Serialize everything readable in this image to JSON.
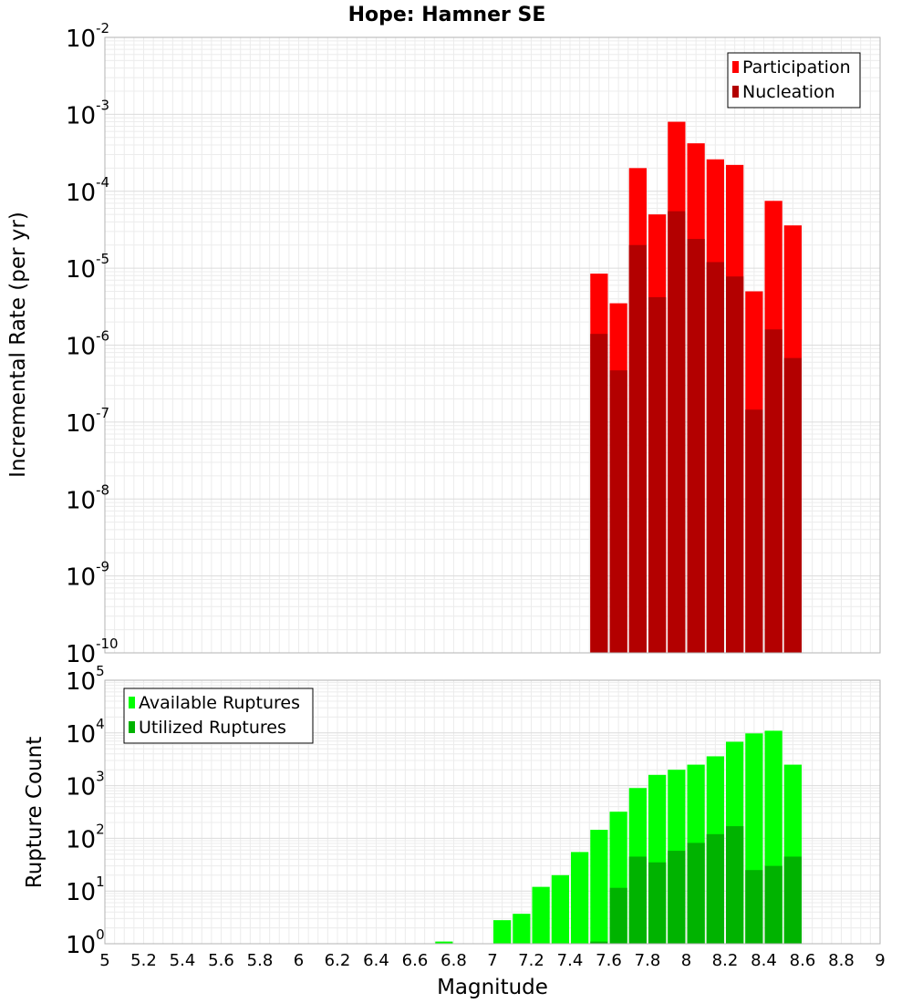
{
  "chart_data": [
    {
      "type": "bar",
      "title": "Hope: Hamner SE",
      "xlabel": "Magnitude",
      "ylabel": "Incremental Rate (per yr)",
      "yscale": "log",
      "xlim": [
        5,
        9
      ],
      "ylim": [
        1e-10,
        0.01
      ],
      "bar_width": 0.1,
      "grid": true,
      "legend_position": "top-right",
      "x": [
        7.55,
        7.65,
        7.75,
        7.85,
        7.95,
        8.05,
        8.15,
        8.25,
        8.35,
        8.45,
        8.55
      ],
      "series": [
        {
          "name": "Participation",
          "color": "#ff0000",
          "values": [
            8.5e-06,
            3.5e-06,
            0.0002,
            5e-05,
            0.0008,
            0.00042,
            0.00026,
            0.00022,
            5e-06,
            7.5e-05,
            3.6e-05
          ]
        },
        {
          "name": "Nucleation",
          "color": "#b30000",
          "values": [
            1.4e-06,
            4.7e-07,
            2e-05,
            4.2e-06,
            5.5e-05,
            2.4e-05,
            1.2e-05,
            7.8e-06,
            1.45e-07,
            1.6e-06,
            6.8e-07
          ]
        }
      ]
    },
    {
      "type": "bar",
      "xlabel": "Magnitude",
      "ylabel": "Rupture Count",
      "yscale": "log",
      "xlim": [
        5,
        9
      ],
      "ylim": [
        1,
        100000
      ],
      "bar_width": 0.1,
      "grid": true,
      "legend_position": "top-left",
      "x": [
        6.75,
        7.05,
        7.15,
        7.25,
        7.35,
        7.45,
        7.55,
        7.65,
        7.75,
        7.85,
        7.95,
        8.05,
        8.15,
        8.25,
        8.35,
        8.45,
        8.55
      ],
      "series": [
        {
          "name": "Available Ruptures",
          "color": "#00ff00",
          "values": [
            1.1,
            2.8,
            3.7,
            12,
            20,
            55,
            145,
            320,
            900,
            1600,
            2000,
            2500,
            3600,
            6800,
            9800,
            11000,
            2500
          ]
        },
        {
          "name": "Utilized Ruptures",
          "color": "#00b300",
          "values": [
            null,
            null,
            null,
            null,
            null,
            null,
            1.1,
            11.5,
            45,
            35,
            58,
            82,
            120,
            170,
            25,
            30,
            45
          ]
        }
      ]
    }
  ],
  "axes": {
    "x_ticks": [
      "5",
      "5.2",
      "5.4",
      "5.6",
      "5.8",
      "6",
      "6.2",
      "6.4",
      "6.6",
      "6.8",
      "7",
      "7.2",
      "7.4",
      "7.6",
      "7.8",
      "8",
      "8.2",
      "8.4",
      "8.6",
      "8.8",
      "9"
    ],
    "top_y_ticks": [
      {
        "base": "10",
        "exp": "-10"
      },
      {
        "base": "10",
        "exp": "-9"
      },
      {
        "base": "10",
        "exp": "-8"
      },
      {
        "base": "10",
        "exp": "-7"
      },
      {
        "base": "10",
        "exp": "-6"
      },
      {
        "base": "10",
        "exp": "-5"
      },
      {
        "base": "10",
        "exp": "-4"
      },
      {
        "base": "10",
        "exp": "-3"
      },
      {
        "base": "10",
        "exp": "-2"
      }
    ],
    "bottom_y_ticks": [
      {
        "base": "10",
        "exp": "0"
      },
      {
        "base": "10",
        "exp": "1"
      },
      {
        "base": "10",
        "exp": "2"
      },
      {
        "base": "10",
        "exp": "3"
      },
      {
        "base": "10",
        "exp": "4"
      },
      {
        "base": "10",
        "exp": "5"
      }
    ]
  }
}
